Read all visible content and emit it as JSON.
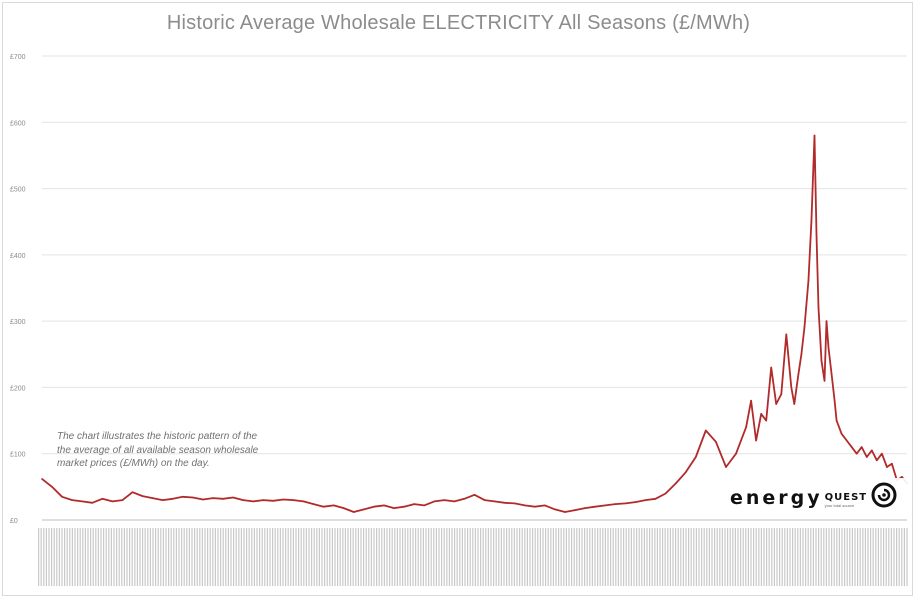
{
  "chart_data": {
    "type": "line",
    "title": "Historic Average Wholesale ELECTRICITY All Seasons (£/MWh)",
    "xlabel": "",
    "ylabel": "",
    "y_ticks": [
      "£0",
      "£100",
      "£200",
      "£300",
      "£400",
      "£500",
      "£600",
      "£700"
    ],
    "ylim": [
      0,
      700
    ],
    "grid": "horizontal",
    "legend": "none",
    "series": [
      {
        "color": "#b22a2a",
        "x": [
          0,
          10,
          20,
          30,
          40,
          50,
          60,
          70,
          80,
          90,
          100,
          110,
          120,
          130,
          140,
          150,
          160,
          170,
          180,
          190,
          200,
          210,
          220,
          230,
          240,
          250,
          260,
          270,
          280,
          290,
          300,
          310,
          320,
          330,
          340,
          350,
          360,
          370,
          380,
          390,
          400,
          410,
          420,
          430,
          440,
          450,
          460,
          470,
          480,
          490,
          500,
          510,
          520,
          530,
          540,
          550,
          560,
          570,
          580,
          590,
          600,
          610,
          620,
          630,
          640,
          650,
          660,
          670,
          680,
          690,
          700,
          705,
          710,
          715,
          720,
          725,
          730,
          735,
          740,
          745,
          748,
          752,
          755,
          758,
          762,
          765,
          768,
          770,
          772,
          775,
          778,
          780,
          782,
          785,
          788,
          790,
          795,
          800,
          805,
          810,
          815,
          820,
          825,
          830,
          835,
          840,
          845,
          850,
          855,
          860
        ],
        "values": [
          62,
          50,
          35,
          30,
          28,
          26,
          32,
          28,
          30,
          42,
          36,
          33,
          30,
          32,
          35,
          34,
          31,
          33,
          32,
          34,
          30,
          28,
          30,
          29,
          31,
          30,
          28,
          24,
          20,
          22,
          18,
          12,
          16,
          20,
          22,
          18,
          20,
          24,
          22,
          28,
          30,
          28,
          32,
          38,
          30,
          28,
          26,
          25,
          22,
          20,
          22,
          16,
          12,
          15,
          18,
          20,
          22,
          24,
          25,
          27,
          30,
          32,
          40,
          55,
          72,
          95,
          135,
          118,
          80,
          100,
          140,
          180,
          120,
          160,
          150,
          230,
          175,
          190,
          280,
          200,
          175,
          220,
          250,
          290,
          360,
          450,
          580,
          430,
          320,
          240,
          210,
          300,
          260,
          220,
          180,
          150,
          130,
          120,
          110,
          100,
          110,
          95,
          105,
          90,
          100,
          80,
          85,
          60,
          65,
          55
        ]
      }
    ],
    "annotation": "The chart illustrates the historic pattern of the the average of all available season wholesale market prices (£/MWh) on the day."
  },
  "logo": {
    "word": "energy",
    "word2": "QUEST",
    "tagline": "your total source"
  }
}
